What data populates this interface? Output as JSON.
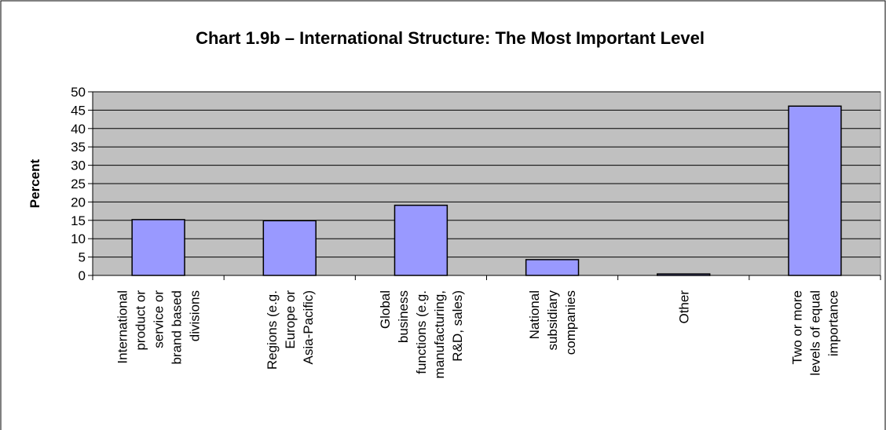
{
  "chart_data": {
    "type": "bar",
    "title": "Chart 1.9b – International Structure: The Most Important Level",
    "xlabel": "",
    "ylabel": "Percent",
    "ylim": [
      0,
      50
    ],
    "yticks": [
      0,
      5,
      10,
      15,
      20,
      25,
      30,
      35,
      40,
      45,
      50
    ],
    "grid": true,
    "legend": "none",
    "plot_background": "#c0c0c0",
    "bar_color": "#9999ff",
    "categories": [
      "International product or service or brand based divisions",
      "Regions (e.g. Europe or Asia-Pacific)",
      "Global business functions (e.g. manufacturing, R&D, sales)",
      "National subsidiary companies",
      "Other",
      "Two or more levels of equal importance"
    ],
    "category_lines": [
      [
        "International",
        "product or",
        "service or",
        "brand based",
        "divisions"
      ],
      [
        "Regions (e.g.",
        "Europe or",
        "Asia-Pacific)"
      ],
      [
        "Global",
        "business",
        "functions (e.g.",
        "manufacturing,",
        "R&D, sales)"
      ],
      [
        "National",
        "subsidiary",
        "companies"
      ],
      [
        "Other"
      ],
      [
        "Two or more",
        "levels of equal",
        "importance"
      ]
    ],
    "values": [
      15.2,
      14.9,
      19.1,
      4.3,
      0.4,
      46.1
    ]
  }
}
